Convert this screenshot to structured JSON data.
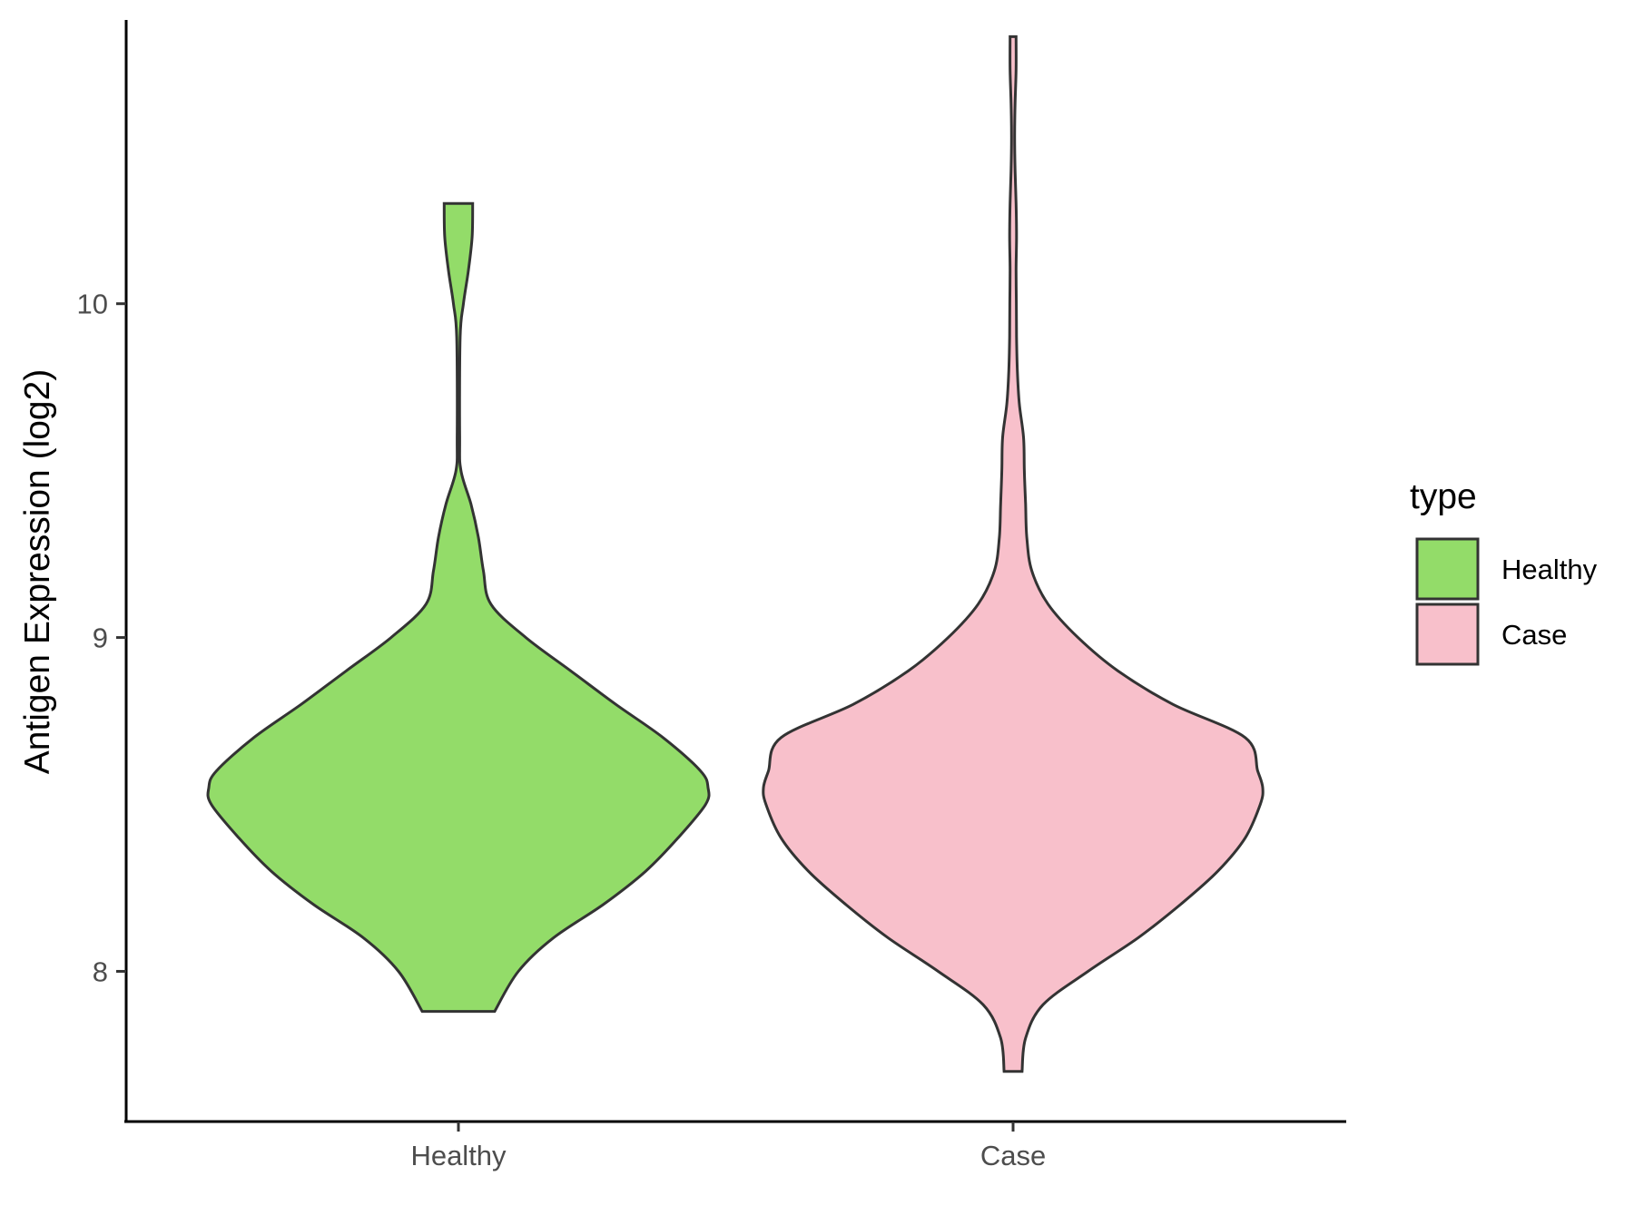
{
  "chart_data": {
    "type": "violin",
    "title": "",
    "xlabel": "",
    "ylabel": "Antigen Expression (log2)",
    "categories": [
      "Healthy",
      "Case"
    ],
    "ylim": [
      7.55,
      10.85
    ],
    "yticks": [
      8,
      9,
      10
    ],
    "legend": {
      "title": "type",
      "placement": "right",
      "entries": [
        "Healthy",
        "Case"
      ]
    },
    "colors": {
      "Healthy": "#93dc69",
      "Case": "#f8c0cb"
    },
    "series": [
      {
        "name": "Healthy",
        "min": 7.88,
        "max": 10.3,
        "profile": [
          [
            7.88,
            0.145
          ],
          [
            8.0,
            0.24
          ],
          [
            8.1,
            0.38
          ],
          [
            8.2,
            0.58
          ],
          [
            8.3,
            0.75
          ],
          [
            8.4,
            0.88
          ],
          [
            8.5,
            0.99
          ],
          [
            8.55,
            1.0
          ],
          [
            8.6,
            0.97
          ],
          [
            8.7,
            0.82
          ],
          [
            8.8,
            0.63
          ],
          [
            8.9,
            0.45
          ],
          [
            9.0,
            0.27
          ],
          [
            9.1,
            0.13
          ],
          [
            9.2,
            0.1
          ],
          [
            9.3,
            0.08
          ],
          [
            9.4,
            0.05
          ],
          [
            9.5,
            0.01
          ],
          [
            9.6,
            0.005
          ],
          [
            9.9,
            0.007
          ],
          [
            10.0,
            0.02
          ],
          [
            10.1,
            0.04
          ],
          [
            10.2,
            0.055
          ],
          [
            10.3,
            0.057
          ]
        ]
      },
      {
        "name": "Case",
        "min": 7.7,
        "max": 10.8,
        "profile": [
          [
            7.7,
            0.036
          ],
          [
            7.8,
            0.05
          ],
          [
            7.9,
            0.12
          ],
          [
            8.0,
            0.3
          ],
          [
            8.1,
            0.5
          ],
          [
            8.2,
            0.67
          ],
          [
            8.3,
            0.82
          ],
          [
            8.4,
            0.93
          ],
          [
            8.5,
            0.99
          ],
          [
            8.55,
            1.0
          ],
          [
            8.6,
            0.98
          ],
          [
            8.7,
            0.93
          ],
          [
            8.8,
            0.64
          ],
          [
            8.9,
            0.42
          ],
          [
            9.0,
            0.26
          ],
          [
            9.1,
            0.14
          ],
          [
            9.2,
            0.075
          ],
          [
            9.3,
            0.055
          ],
          [
            9.4,
            0.05
          ],
          [
            9.5,
            0.045
          ],
          [
            9.6,
            0.042
          ],
          [
            9.7,
            0.025
          ],
          [
            9.8,
            0.017
          ],
          [
            9.9,
            0.014
          ],
          [
            10.0,
            0.013
          ],
          [
            10.1,
            0.012
          ],
          [
            10.2,
            0.014
          ],
          [
            10.3,
            0.012
          ],
          [
            10.4,
            0.008
          ],
          [
            10.5,
            0.006
          ],
          [
            10.6,
            0.008
          ],
          [
            10.7,
            0.012
          ],
          [
            10.8,
            0.012
          ]
        ]
      }
    ]
  }
}
